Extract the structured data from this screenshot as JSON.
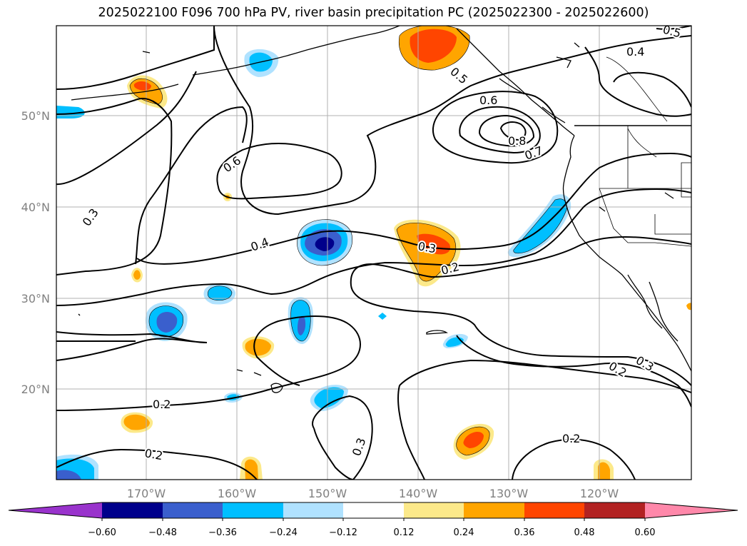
{
  "title": "2025022100 F096 700 hPa PV, river basin precipitation PC (2025022300 - 2025022600)",
  "lon_labels": [
    "170°W",
    "160°W",
    "150°W",
    "140°W",
    "130°W",
    "120°W"
  ],
  "lat_labels": [
    "50°N",
    "40°N",
    "30°N",
    "20°N"
  ],
  "contour_labels": [
    "0.5",
    "0.4",
    "0.6",
    "0.8",
    "0.7",
    "0.6",
    "0.3",
    "0.4",
    "0.3",
    "0.2",
    "0.3",
    "0.2",
    "0.2",
    "0.2",
    "0.3",
    "0.2",
    "0.5"
  ],
  "colorbar": {
    "ticks": [
      "−0.60",
      "−0.48",
      "−0.36",
      "−0.24",
      "−0.12",
      "0.12",
      "0.24",
      "0.36",
      "0.48",
      "0.60"
    ],
    "colors": [
      "#9933cc",
      "#00008b",
      "#3a5fcd",
      "#00bfff",
      "#b0e2ff",
      "#ffffff",
      "#fce98a",
      "#ffa500",
      "#ff4500",
      "#b22222",
      "#ff88aa"
    ]
  },
  "colors": {
    "contour": "#000000",
    "grid": "#b0b0b0",
    "tick_text": "#808080"
  }
}
